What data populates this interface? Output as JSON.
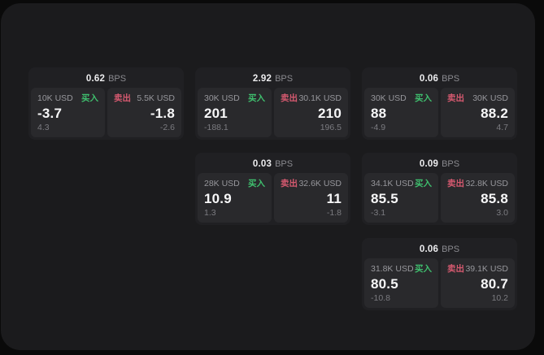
{
  "labels": {
    "bps_unit": "BPS",
    "buy": "买入",
    "sell": "卖出"
  },
  "colors": {
    "buy_green": "#3fbf6e",
    "sell_red": "#d5596f",
    "panel_bg": "#1b1b1d",
    "card_bg": "#202023",
    "cell_bg": "#29292c"
  },
  "cards": [
    {
      "bps": "0.62",
      "buy": {
        "amount": "10K USD",
        "price": "-3.7",
        "delta": "4.3"
      },
      "sell": {
        "amount": "5.5K USD",
        "price": "-1.8",
        "delta": "-2.6"
      }
    },
    {
      "bps": "2.92",
      "buy": {
        "amount": "30K USD",
        "price": "201",
        "delta": "-188.1"
      },
      "sell": {
        "amount": "30.1K USD",
        "price": "210",
        "delta": "196.5"
      }
    },
    {
      "bps": "0.06",
      "buy": {
        "amount": "30K USD",
        "price": "88",
        "delta": "-4.9"
      },
      "sell": {
        "amount": "30K USD",
        "price": "88.2",
        "delta": "4.7"
      }
    },
    {
      "bps": "0.03",
      "buy": {
        "amount": "28K USD",
        "price": "10.9",
        "delta": "1.3"
      },
      "sell": {
        "amount": "32.6K USD",
        "price": "11",
        "delta": "-1.8"
      }
    },
    {
      "bps": "0.09",
      "buy": {
        "amount": "34.1K USD",
        "price": "85.5",
        "delta": "-3.1"
      },
      "sell": {
        "amount": "32.8K USD",
        "price": "85.8",
        "delta": "3.0"
      }
    },
    {
      "bps": "0.06",
      "buy": {
        "amount": "31.8K USD",
        "price": "80.5",
        "delta": "-10.8"
      },
      "sell": {
        "amount": "39.1K USD",
        "price": "80.7",
        "delta": "10.2"
      }
    }
  ]
}
